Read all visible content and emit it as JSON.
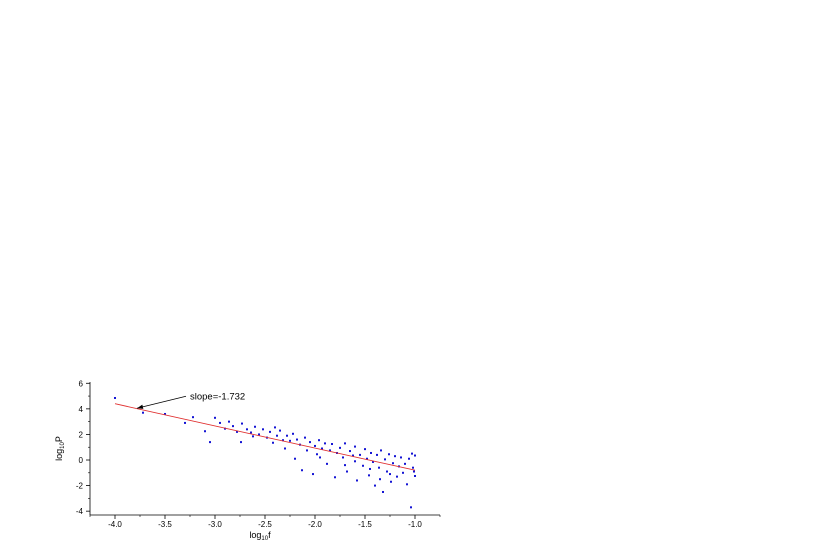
{
  "chart_data": {
    "type": "scatter",
    "xlabel_main": "log",
    "xlabel_sub": "10",
    "xlabel_tail": "f",
    "ylabel_main": "log",
    "ylabel_sub": "10",
    "ylabel_tail": "P",
    "xlim": [
      -4.25,
      -0.75
    ],
    "ylim": [
      -4.3,
      6.1
    ],
    "xticks": [
      {
        "value": -4.0,
        "label": "-4.0"
      },
      {
        "value": -3.5,
        "label": "-3.5"
      },
      {
        "value": -3.0,
        "label": "-3.0"
      },
      {
        "value": -2.5,
        "label": "-2.5"
      },
      {
        "value": -2.0,
        "label": "-2.0"
      },
      {
        "value": -1.5,
        "label": "-1.5"
      },
      {
        "value": -1.0,
        "label": "-1.0"
      }
    ],
    "yticks": [
      {
        "value": 6,
        "label": "6"
      },
      {
        "value": 4,
        "label": "4"
      },
      {
        "value": 2,
        "label": "2"
      },
      {
        "value": 0,
        "label": "0"
      },
      {
        "value": -2,
        "label": "-2"
      },
      {
        "value": -4,
        "label": "-4"
      }
    ],
    "fit_line": {
      "x": [
        -4.0,
        -1.0
      ],
      "y": [
        4.4,
        -0.8
      ],
      "color": "#e03030"
    },
    "annotation": {
      "text": "slope=-1.732",
      "arrow_to": [
        -3.78,
        4.05
      ],
      "text_at": [
        -3.25,
        4.75
      ]
    },
    "point_color": "#1414d4",
    "series": [
      {
        "points": [
          [
            -4.0,
            4.85
          ],
          [
            -3.72,
            3.7
          ],
          [
            -3.5,
            3.6
          ],
          [
            -3.3,
            2.9
          ],
          [
            -3.22,
            3.35
          ],
          [
            -3.1,
            2.25
          ],
          [
            -3.05,
            1.4
          ],
          [
            -3.0,
            3.3
          ],
          [
            -2.95,
            2.9
          ],
          [
            -2.9,
            2.45
          ],
          [
            -2.86,
            3.0
          ],
          [
            -2.82,
            2.65
          ],
          [
            -2.78,
            2.2
          ],
          [
            -2.73,
            2.85
          ],
          [
            -2.68,
            2.4
          ],
          [
            -2.64,
            2.15
          ],
          [
            -2.6,
            2.6
          ],
          [
            -2.56,
            2.0
          ],
          [
            -2.52,
            2.4
          ],
          [
            -2.48,
            1.75
          ],
          [
            -2.45,
            2.2
          ],
          [
            -2.42,
            1.35
          ],
          [
            -2.38,
            1.9
          ],
          [
            -2.35,
            2.3
          ],
          [
            -2.32,
            1.55
          ],
          [
            -2.28,
            1.9
          ],
          [
            -2.25,
            1.5
          ],
          [
            -2.22,
            2.05
          ],
          [
            -2.2,
            0.1
          ],
          [
            -2.18,
            1.6
          ],
          [
            -2.15,
            1.2
          ],
          [
            -2.13,
            -0.8
          ],
          [
            -2.1,
            1.75
          ],
          [
            -2.08,
            0.75
          ],
          [
            -2.05,
            1.4
          ],
          [
            -2.02,
            -1.1
          ],
          [
            -2.0,
            1.1
          ],
          [
            -1.98,
            0.45
          ],
          [
            -1.96,
            1.55
          ],
          [
            -1.93,
            0.9
          ],
          [
            -1.9,
            1.3
          ],
          [
            -1.88,
            -0.3
          ],
          [
            -1.85,
            0.75
          ],
          [
            -1.83,
            1.25
          ],
          [
            -1.8,
            -1.35
          ],
          [
            -1.78,
            0.55
          ],
          [
            -1.75,
            0.95
          ],
          [
            -1.72,
            0.2
          ],
          [
            -1.7,
            1.3
          ],
          [
            -1.68,
            -0.9
          ],
          [
            -1.65,
            0.7
          ],
          [
            -1.62,
            0.35
          ],
          [
            -1.6,
            1.05
          ],
          [
            -1.58,
            -1.6
          ],
          [
            -1.55,
            0.4
          ],
          [
            -1.52,
            -0.45
          ],
          [
            -1.5,
            0.85
          ],
          [
            -1.48,
            0.1
          ],
          [
            -1.46,
            -1.2
          ],
          [
            -1.44,
            0.55
          ],
          [
            -1.42,
            -0.15
          ],
          [
            -1.4,
            -2.0
          ],
          [
            -1.38,
            0.4
          ],
          [
            -1.36,
            -0.6
          ],
          [
            -1.34,
            0.75
          ],
          [
            -1.32,
            -2.5
          ],
          [
            -1.3,
            0.05
          ],
          [
            -1.28,
            -0.9
          ],
          [
            -1.26,
            0.45
          ],
          [
            -1.24,
            -1.7
          ],
          [
            -1.22,
            -0.25
          ],
          [
            -1.2,
            0.3
          ],
          [
            -1.18,
            -1.3
          ],
          [
            -1.16,
            -0.5
          ],
          [
            -1.14,
            0.2
          ],
          [
            -1.12,
            -1.0
          ],
          [
            -1.1,
            -0.3
          ],
          [
            -1.08,
            -1.9
          ],
          [
            -1.06,
            0.1
          ],
          [
            -1.04,
            -3.7
          ],
          [
            -1.02,
            -0.6
          ],
          [
            -1.0,
            -1.25
          ],
          [
            -1.0,
            0.35
          ],
          [
            -1.01,
            -0.9
          ],
          [
            -1.03,
            0.5
          ],
          [
            -2.4,
            2.55
          ],
          [
            -2.62,
            1.85
          ],
          [
            -2.74,
            1.4
          ],
          [
            -2.3,
            0.9
          ],
          [
            -1.95,
            0.2
          ],
          [
            -1.7,
            -0.4
          ],
          [
            -1.6,
            -0.1
          ],
          [
            -1.45,
            -0.7
          ],
          [
            -1.35,
            -1.5
          ],
          [
            -1.25,
            -1.1
          ]
        ]
      }
    ]
  }
}
